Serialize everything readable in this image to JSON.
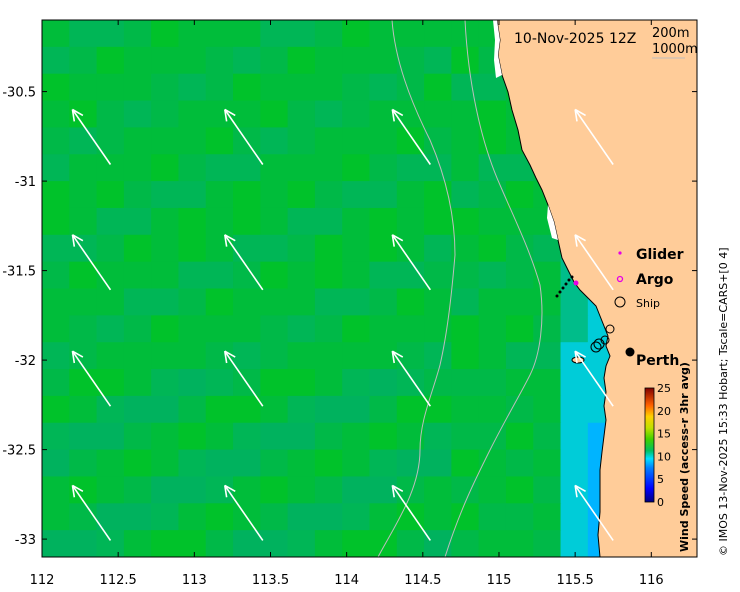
{
  "map": {
    "title": "10-Nov-2025 12Z",
    "isobath_labels": [
      "200m",
      "1000m"
    ],
    "x_ticks": [
      "112",
      "112.5",
      "113",
      "113.5",
      "114",
      "114.5",
      "115",
      "115.5",
      "116"
    ],
    "y_ticks": [
      "-30.5",
      "-31",
      "-31.5",
      "-32",
      "-32.5",
      "-33"
    ],
    "lon_range": [
      112,
      116.3
    ],
    "lat_range": [
      -33.1,
      -30.1
    ],
    "colorbar": {
      "label": "Wind Speed (access-r 3hr avg)",
      "ticks": [
        "0",
        "5",
        "10",
        "15",
        "20",
        "25"
      ],
      "range": [
        0,
        25
      ]
    },
    "legend": {
      "glider": "Glider",
      "argo": "Argo",
      "ship": "Ship",
      "city": "Perth",
      "glider_color": "#e600e6",
      "argo_color": "#e600e6"
    },
    "credit": "© IMOS 13-Nov-2025 15:33 Hobart; Tscale=CARS+[0 4]",
    "colors": {
      "land": "#ffcc99",
      "wind_strong": "#00c22a",
      "wind_mid": "#00b956",
      "wind_low": "#0096ff"
    }
  }
}
